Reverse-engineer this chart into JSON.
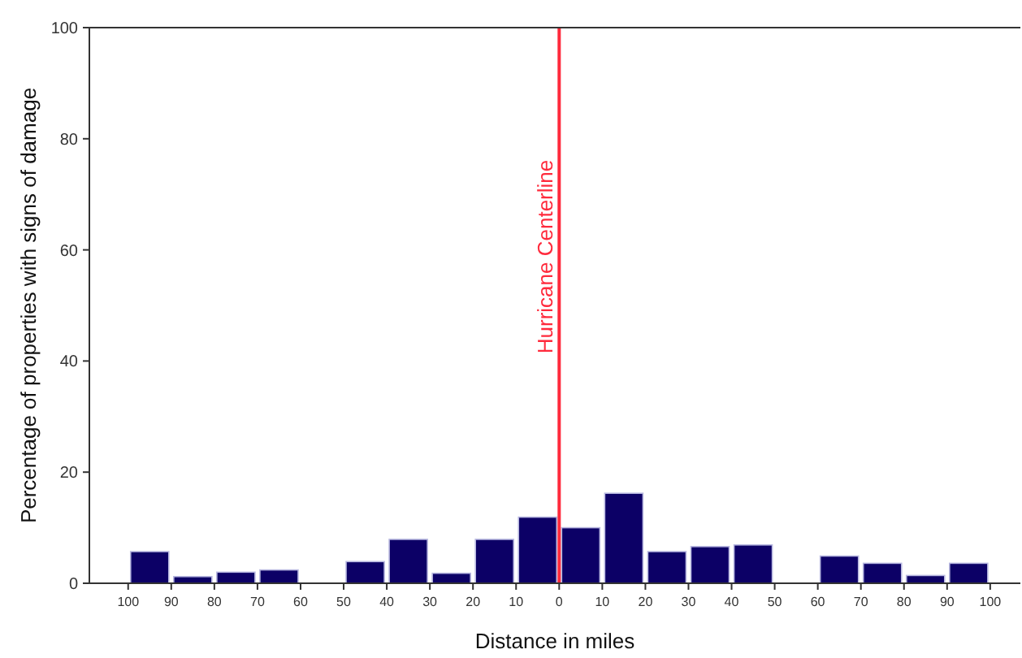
{
  "chart_data": {
    "type": "histogram",
    "xlabel": "Distance in miles",
    "ylabel": "Percentage of properties with signs of damage",
    "bins": [
      -100,
      -90,
      -80,
      -70,
      -60,
      -50,
      -40,
      -30,
      -20,
      -10,
      0,
      10,
      20,
      30,
      40,
      50,
      60,
      70,
      80,
      90,
      100
    ],
    "values": [
      5.7,
      1.2,
      2.0,
      2.4,
      0,
      3.9,
      7.9,
      1.8,
      7.9,
      11.9,
      10.0,
      16.2,
      5.7,
      6.6,
      6.9,
      0,
      4.9,
      3.6,
      1.4,
      3.6
    ],
    "color": "#0c0066",
    "xlim": [
      -109,
      107
    ],
    "xticks": [
      {
        "value": -100,
        "label": "100"
      },
      {
        "value": -90,
        "label": "90"
      },
      {
        "value": -80,
        "label": "80"
      },
      {
        "value": -70,
        "label": "70"
      },
      {
        "value": -60,
        "label": "60"
      },
      {
        "value": -50,
        "label": "50"
      },
      {
        "value": -40,
        "label": "40"
      },
      {
        "value": -30,
        "label": "30"
      },
      {
        "value": -20,
        "label": "20"
      },
      {
        "value": -10,
        "label": "10"
      },
      0,
      10,
      20,
      30,
      40,
      50,
      60,
      70,
      80,
      90,
      100
    ],
    "ylim": [
      0,
      100
    ],
    "yticks": [
      0,
      20,
      40,
      60,
      80,
      100
    ],
    "grid": false,
    "ref_lines": [
      {
        "axis": "x",
        "value": 0,
        "label": "Hurricane Centerline",
        "color": "#ff2a3c"
      }
    ]
  }
}
